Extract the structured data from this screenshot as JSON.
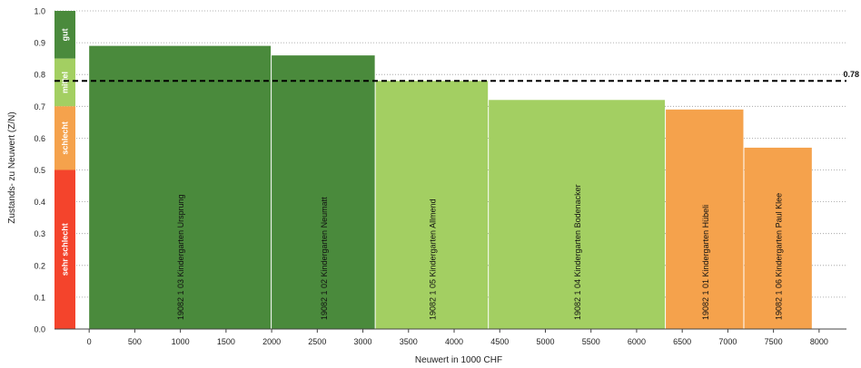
{
  "chart_data": {
    "type": "bar",
    "variant": "variable-width (marimekko)",
    "xlabel": "Neuwert in 1000 CHF",
    "ylabel": "Zustands- zu Neuwert (Z/N)",
    "xlim": [
      -380,
      8300
    ],
    "ylim": [
      0,
      1
    ],
    "x_ticks": [
      0,
      500,
      1000,
      1500,
      2000,
      2500,
      3000,
      3500,
      4000,
      4500,
      5000,
      5500,
      6000,
      6500,
      7000,
      7500,
      8000
    ],
    "y_ticks": [
      "0.0",
      "0.1",
      "0.2",
      "0.3",
      "0.4",
      "0.5",
      "0.6",
      "0.7",
      "0.8",
      "0.9",
      "1.0"
    ],
    "grid": "horizontal dotted",
    "bars": [
      {
        "label": "19082 1 03 Kindergarten Ursprung",
        "x_start": 0,
        "x_end": 1990,
        "value": 0.89,
        "color": "#4a8a3c"
      },
      {
        "label": "19082 1 02 Kindergarten Neumatt",
        "x_start": 2000,
        "x_end": 3130,
        "value": 0.86,
        "color": "#4a8a3c"
      },
      {
        "label": "19082 1 05 Kindergarten Allmend",
        "x_start": 3140,
        "x_end": 4370,
        "value": 0.78,
        "color": "#a3cf62"
      },
      {
        "label": "19082 1 04 Kindergarten Bodenacker",
        "x_start": 4380,
        "x_end": 6310,
        "value": 0.72,
        "color": "#a3cf62"
      },
      {
        "label": "19082 1 01 Kindergarten Hübeli",
        "x_start": 6320,
        "x_end": 7170,
        "value": 0.69,
        "color": "#f5a24c"
      },
      {
        "label": "19082 1 06 Kindergarten Paul Klee",
        "x_start": 7180,
        "x_end": 7920,
        "value": 0.57,
        "color": "#f5a24c"
      }
    ],
    "reference_line": {
      "value": 0.78,
      "label": "0.78",
      "style": "dashed"
    },
    "condition_bands": [
      {
        "label": "gut",
        "from": 0.85,
        "to": 1.0,
        "color": "#4a8a3c"
      },
      {
        "label": "mittel",
        "from": 0.7,
        "to": 0.85,
        "color": "#a3cf62"
      },
      {
        "label": "schlecht",
        "from": 0.5,
        "to": 0.7,
        "color": "#f5a24c"
      },
      {
        "label": "sehr schlecht",
        "from": 0.0,
        "to": 0.5,
        "color": "#f4442c"
      }
    ]
  }
}
